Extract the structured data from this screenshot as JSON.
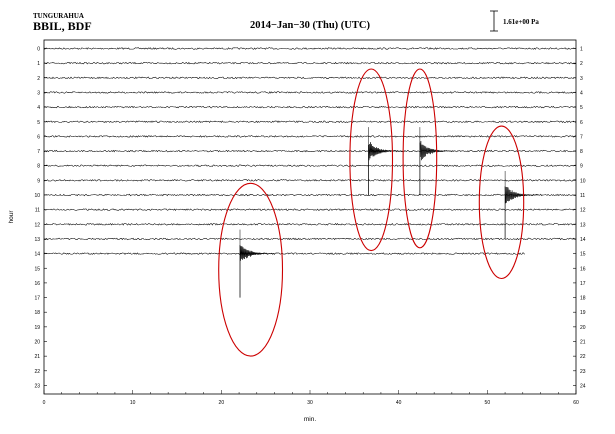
{
  "header": {
    "station": "TUNGURAHUA",
    "channel": "BBIL, BDF",
    "date": "2014−Jan−30 (Thu) (UTC)",
    "scale": "1.61e+00 Pa"
  },
  "chart_data": {
    "type": "line",
    "title": "2014−Jan−30 (Thu) (UTC)",
    "xlabel": "min.",
    "ylabel": "hour",
    "xlim": [
      0,
      60
    ],
    "ylim": [
      0,
      24
    ],
    "x_ticks": [
      "0",
      "10",
      "20",
      "30",
      "40",
      "50",
      "60"
    ],
    "left_ticks": [
      "0",
      "1",
      "2",
      "3",
      "4",
      "5",
      "6",
      "7",
      "8",
      "9",
      "10",
      "11",
      "12",
      "13",
      "14",
      "15",
      "16",
      "17",
      "18",
      "19",
      "20",
      "21",
      "22",
      "23"
    ],
    "right_ticks": [
      "1",
      "2",
      "3",
      "4",
      "5",
      "6",
      "7",
      "8",
      "9",
      "10",
      "11",
      "12",
      "13",
      "14",
      "15",
      "16",
      "17",
      "18",
      "19",
      "20",
      "21",
      "22",
      "23",
      "24"
    ],
    "trace_hours": [
      0,
      1,
      2,
      3,
      4,
      5,
      6,
      7,
      8,
      9,
      10,
      11,
      12,
      13,
      14
    ],
    "last_trace_end_minute": 54.3,
    "line_color": "#000000",
    "highlight_color": "#cc0000",
    "events": [
      {
        "hour": 14,
        "minute": 22.1
      },
      {
        "hour": 7,
        "minute": 36.6
      },
      {
        "hour": 7,
        "minute": 42.4
      },
      {
        "hour": 10,
        "minute": 52.0
      }
    ],
    "highlights": [
      {
        "minute_center": 23.3,
        "hour_center": 15.1,
        "minute_halfwidth": 3.6,
        "hour_halfwidth": 5.9
      },
      {
        "minute_center": 36.9,
        "hour_center": 7.6,
        "minute_halfwidth": 2.4,
        "hour_halfwidth": 6.2
      },
      {
        "minute_center": 42.4,
        "hour_center": 7.5,
        "minute_halfwidth": 1.9,
        "hour_halfwidth": 6.1
      },
      {
        "minute_center": 51.6,
        "hour_center": 10.5,
        "minute_halfwidth": 2.5,
        "hour_halfwidth": 5.2
      }
    ]
  }
}
